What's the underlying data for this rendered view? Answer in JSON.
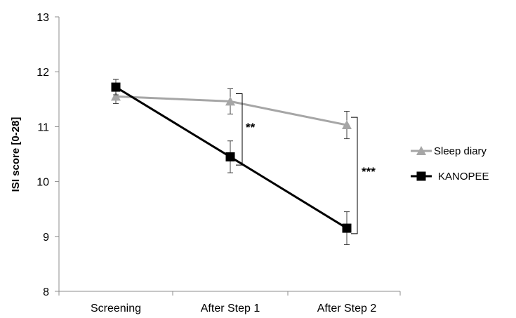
{
  "chart_data": {
    "type": "line",
    "title": "",
    "xlabel": "",
    "ylabel": "ISI score [0-28]",
    "ylim": [
      8,
      13
    ],
    "yticks": [
      8,
      9,
      10,
      11,
      12,
      13
    ],
    "categories": [
      "Screening",
      "After Step 1",
      "After Step 2"
    ],
    "series": [
      {
        "name": "Sleep diary",
        "color": "#a6a6a6",
        "marker": "triangle",
        "values": [
          11.55,
          11.46,
          11.03
        ],
        "error": [
          0.13,
          0.23,
          0.25
        ]
      },
      {
        "name": "KANOPEE",
        "color": "#000000",
        "marker": "square",
        "values": [
          11.72,
          10.45,
          9.15
        ],
        "error": [
          0.14,
          0.29,
          0.3
        ]
      }
    ],
    "legend_position": "right",
    "grid": false,
    "annotations": [
      {
        "text": "**",
        "category": "After Step 1"
      },
      {
        "text": "***",
        "category": "After Step 2"
      }
    ]
  }
}
